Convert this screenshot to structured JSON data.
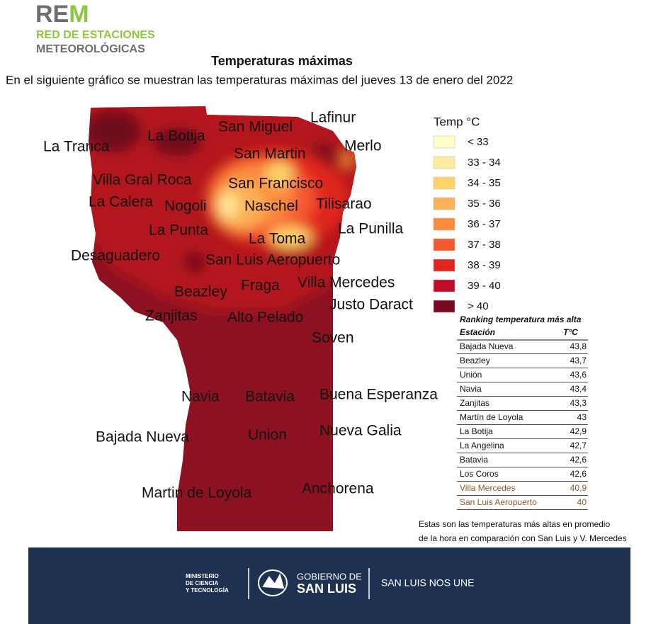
{
  "header": {
    "logo": {
      "part1": "RE",
      "part2": "M"
    },
    "logo_line1": "RED DE ESTACIONES",
    "logo_line2": "METEOROLÓGICAS",
    "title": "Temperaturas máximas",
    "subtitle": "En el siguiente gráfico se muestran las temperaturas máximas del jueves 13 de enero del 2022"
  },
  "map": {
    "labels": [
      "Lafinur",
      "San Miguel",
      "La Botija",
      "La Tranca",
      "Merlo",
      "San Martin",
      "Villa Gral Roca",
      "San Francisco",
      "La Calera",
      "Nogoli",
      "Naschel",
      "Tilisarao",
      "La Punta",
      "La Punilla",
      "La Toma",
      "Desaguadero",
      "San Luis Aeropuerto",
      "Villa Mercedes",
      "Fraga",
      "Beazley",
      "Justo Daract",
      "Zanjitas",
      "Alto Pelado",
      "Soven",
      "Navia",
      "Batavia",
      "Buena Esperanza",
      "Bajada Nueva",
      "Union",
      "Nueva Galia",
      "Martin de Loyola",
      "Anchorena"
    ],
    "legend": {
      "title": "Temp °C",
      "items": [
        {
          "label": "< 33",
          "color": "#ffffc8"
        },
        {
          "label": "33 - 34",
          "color": "#feeb9c"
        },
        {
          "label": "34 - 35",
          "color": "#fed46a"
        },
        {
          "label": "35 - 36",
          "color": "#fdb055"
        },
        {
          "label": "36 - 37",
          "color": "#fc8b3e"
        },
        {
          "label": "37 - 38",
          "color": "#f45a31"
        },
        {
          "label": "38 - 39",
          "color": "#e0261e"
        },
        {
          "label": "39 - 40",
          "color": "#c20a28"
        },
        {
          "label": "> 40",
          "color": "#7a0a22"
        }
      ]
    }
  },
  "ranking": {
    "title": "Ranking temperatura más alta",
    "columns": [
      "Estación",
      "T°C"
    ],
    "rows": [
      {
        "station": "Bajada Nueva",
        "temp": "43,8",
        "color": "#111111"
      },
      {
        "station": "Beazley",
        "temp": "43,7",
        "color": "#111111"
      },
      {
        "station": "Unión",
        "temp": "43,6",
        "color": "#111111"
      },
      {
        "station": "Navia",
        "temp": "43,4",
        "color": "#111111"
      },
      {
        "station": "Zanjitas",
        "temp": "43,3",
        "color": "#111111"
      },
      {
        "station": "Martín de Loyola",
        "temp": "43",
        "color": "#111111"
      },
      {
        "station": "La Botija",
        "temp": "42,9",
        "color": "#111111"
      },
      {
        "station": "La Angelina",
        "temp": "42,7",
        "color": "#111111"
      },
      {
        "station": "Batavia",
        "temp": "42,6",
        "color": "#111111"
      },
      {
        "station": "Los Coros",
        "temp": "42,6",
        "color": "#111111"
      },
      {
        "station": "Villa Mercedes",
        "temp": "40,9",
        "color": "#8b5a2b"
      },
      {
        "station": "San Luis Aeropuerto",
        "temp": "40",
        "color": "#8b5a2b"
      }
    ]
  },
  "note": [
    "Estas son las temperaturas más altas en promedio",
    "de la hora en comparación con San Luis y V. Mercedes"
  ],
  "footer": {
    "ministry": [
      "MINISTERIO",
      "DE CIENCIA",
      "Y TECNOLOGÍA"
    ],
    "gov_line1": "GOBIERNO DE",
    "gov_line2": "SAN LUIS",
    "slogan": "SAN LUIS NOS UNE"
  }
}
